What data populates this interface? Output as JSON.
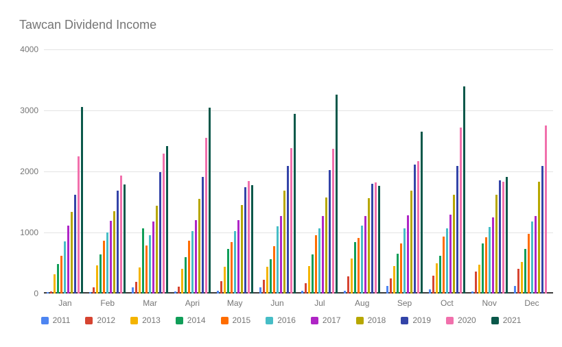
{
  "header": {
    "title": "Tawcan Dividend Income"
  },
  "colors": {
    "background": "#ffffff",
    "title_text": "#757575",
    "axis_text": "#757575",
    "gridline": "#e3e3e3",
    "baseline": "#3b3b3b"
  },
  "chart_data": {
    "type": "bar",
    "title": "Tawcan Dividend Income",
    "xlabel": "",
    "ylabel": "",
    "ylim": [
      0,
      4000
    ],
    "yticks": [
      0,
      1000,
      2000,
      3000,
      4000
    ],
    "grid": true,
    "legend_position": "bottom",
    "categories": [
      "Jan",
      "Feb",
      "Mar",
      "Apri",
      "May",
      "Jun",
      "Jul",
      "Aug",
      "Sep",
      "Oct",
      "Nov",
      "Dec"
    ],
    "series": [
      {
        "name": "2011",
        "color": "#4e85f1",
        "values": [
          20,
          25,
          100,
          30,
          45,
          100,
          40,
          40,
          125,
          70,
          30,
          120
        ]
      },
      {
        "name": "2012",
        "color": "#d64431",
        "values": [
          35,
          100,
          190,
          110,
          200,
          225,
          170,
          285,
          245,
          295,
          360,
          410
        ]
      },
      {
        "name": "2013",
        "color": "#f4b400",
        "values": [
          315,
          460,
          425,
          410,
          435,
          440,
          445,
          575,
          455,
          490,
          475,
          520
        ]
      },
      {
        "name": "2014",
        "color": "#109e58",
        "values": [
          480,
          635,
          1065,
          595,
          735,
          560,
          635,
          845,
          650,
          620,
          820,
          725
        ]
      },
      {
        "name": "2015",
        "color": "#ff6d00",
        "values": [
          620,
          865,
          785,
          865,
          840,
          780,
          950,
          915,
          820,
          935,
          925,
          980
        ]
      },
      {
        "name": "2016",
        "color": "#46bdc6",
        "values": [
          855,
          1000,
          960,
          1025,
          1025,
          1105,
          1070,
          1110,
          1070,
          1070,
          1090,
          1185
        ]
      },
      {
        "name": "2017",
        "color": "#af25c5",
        "values": [
          1115,
          1190,
          1185,
          1200,
          1200,
          1270,
          1275,
          1270,
          1280,
          1295,
          1245,
          1265
        ]
      },
      {
        "name": "2018",
        "color": "#b7a700",
        "values": [
          1335,
          1350,
          1440,
          1545,
          1445,
          1690,
          1575,
          1560,
          1680,
          1615,
          1620,
          1830
        ]
      },
      {
        "name": "2019",
        "color": "#3344a8",
        "values": [
          1620,
          1680,
          1990,
          1915,
          1740,
          2095,
          2025,
          1800,
          2115,
          2090,
          1850,
          2085
        ]
      },
      {
        "name": "2020",
        "color": "#f170ac",
        "values": [
          2250,
          1935,
          2290,
          2545,
          1845,
          2385,
          2375,
          1815,
          2170,
          2720,
          1830,
          2755
        ]
      },
      {
        "name": "2021",
        "color": "#0a584a",
        "values": [
          3055,
          1785,
          2415,
          3040,
          1775,
          2940,
          3255,
          1765,
          2650,
          3395,
          1915,
          0
        ]
      }
    ]
  }
}
